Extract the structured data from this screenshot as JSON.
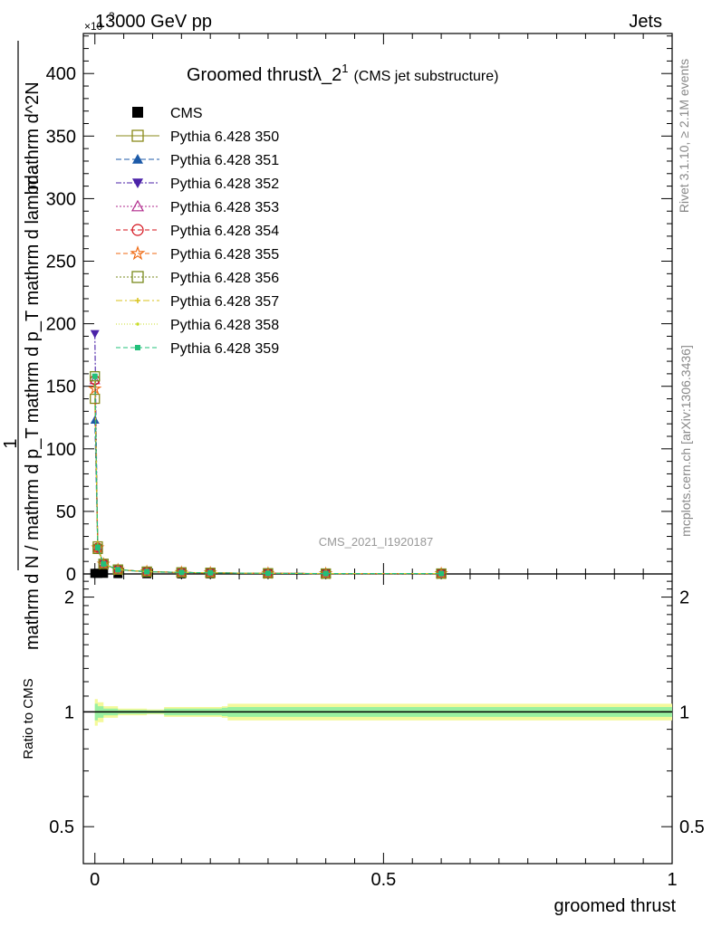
{
  "header": {
    "left": "13000 GeV pp",
    "right": "Jets",
    "exponent_prefix": "×10",
    "exponent": "3"
  },
  "side_labels": {
    "rivet": "Rivet 3.1.10, ≥ 2.1M events",
    "mcplots": "mcplots.cern.ch [arXiv:1306.3436]"
  },
  "chart_data": [
    {
      "type": "line",
      "panel": "main",
      "title": "Groomed thrustλ_2",
      "title_sup": "1",
      "subtitle": "(CMS jet substructure)",
      "watermark": "CMS_2021_I1920187",
      "ylabel_numerator_top": "1",
      "ylabel_numerator": "mathrm d N",
      "ylabel_fraction_bar_text": "mathrm d N / mathrm d p",
      "ylabel_lines": [
        "mathrm d N / mathrm d p_T mathrm d lambda",
        "mathrm d p_T mathrm d lambda"
      ],
      "ylabel_main": "1",
      "ylabel_top": "mathrm d^2N",
      "ylabel_bottom": "mathrm d N / mathrm d p_T mathrm d p_T mathrm d lambda",
      "xlim": [
        -0.02,
        1.0
      ],
      "ylim": [
        0,
        432
      ],
      "y_ticks": [
        0,
        50,
        100,
        150,
        200,
        250,
        300,
        350,
        400
      ],
      "x_ticks": [
        0,
        0.5,
        1
      ],
      "y_scale_factor": 1000,
      "legend_position": "top-left",
      "x": [
        0.0,
        0.005,
        0.015,
        0.04,
        0.09,
        0.15,
        0.2,
        0.3,
        0.4,
        0.6
      ],
      "series": [
        {
          "name": "CMS",
          "color": "#000000",
          "marker": "filled-square",
          "dash": "none",
          "values": [
            0.5,
            0.5,
            0.5,
            0.3,
            0.2,
            0.1,
            0.1,
            0.05,
            0.05,
            0.05
          ]
        },
        {
          "name": "Pythia 6.428 350",
          "color": "#8a8a1a",
          "marker": "open-square",
          "dash": "solid",
          "values": [
            140,
            22,
            8,
            3.5,
            1.8,
            1.2,
            0.9,
            0.5,
            0.3,
            0.3
          ]
        },
        {
          "name": "Pythia 6.428 351",
          "color": "#1c5aa8",
          "marker": "filled-triangle-up",
          "dash": "6,3",
          "values": [
            123,
            20,
            7.5,
            3.3,
            1.7,
            1.1,
            0.9,
            0.5,
            0.3,
            0.3
          ]
        },
        {
          "name": "Pythia 6.428 352",
          "color": "#4b22a8",
          "marker": "filled-triangle-down",
          "dash": "6,2,2,2",
          "values": [
            192,
            21,
            7.8,
            3.4,
            1.8,
            1.2,
            0.9,
            0.5,
            0.3,
            0.3
          ]
        },
        {
          "name": "Pythia 6.428 353",
          "color": "#b02a8c",
          "marker": "open-triangle-up",
          "dash": "2,2",
          "values": [
            155,
            21,
            7.9,
            3.4,
            1.8,
            1.2,
            0.9,
            0.5,
            0.3,
            0.3
          ]
        },
        {
          "name": "Pythia 6.428 354",
          "color": "#d4101a",
          "marker": "open-circle",
          "dash": "5,3",
          "values": [
            155,
            21,
            7.9,
            3.4,
            1.8,
            1.2,
            0.9,
            0.5,
            0.3,
            0.3
          ]
        },
        {
          "name": "Pythia 6.428 355",
          "color": "#ef6a13",
          "marker": "open-star",
          "dash": "5,3",
          "values": [
            148,
            21,
            7.9,
            3.4,
            1.8,
            1.2,
            0.9,
            0.5,
            0.3,
            0.3
          ]
        },
        {
          "name": "Pythia 6.428 356",
          "color": "#7a8a1c",
          "marker": "open-square",
          "dash": "2,2",
          "values": [
            158,
            20,
            8.1,
            3.5,
            1.8,
            1.2,
            0.9,
            0.5,
            0.3,
            0.3
          ]
        },
        {
          "name": "Pythia 6.428 357",
          "color": "#d8c21a",
          "marker": "small-cross",
          "dash": "7,3,2,3",
          "values": [
            157,
            21,
            8,
            3.4,
            1.8,
            1.2,
            0.9,
            0.5,
            0.3,
            0.3
          ]
        },
        {
          "name": "Pythia 6.428 358",
          "color": "#c8dc2a",
          "marker": "small-dot",
          "dash": "1,2",
          "values": [
            157,
            21,
            8,
            3.4,
            1.8,
            1.2,
            0.9,
            0.5,
            0.3,
            0.3
          ]
        },
        {
          "name": "Pythia 6.428 359",
          "color": "#22c07a",
          "marker": "filled-small-square",
          "dash": "5,3",
          "values": [
            158,
            21,
            8,
            3.4,
            1.8,
            1.2,
            0.9,
            0.5,
            0.3,
            0.3
          ]
        }
      ]
    },
    {
      "type": "line",
      "panel": "ratio",
      "ylabel": "Ratio to CMS",
      "xlabel": "groomed thrust",
      "y_scale": "log",
      "ylim": [
        0.4,
        2.3
      ],
      "y_ticks": [
        0.5,
        1,
        2
      ],
      "x_ticks": [
        0,
        0.5,
        1
      ],
      "xlim": [
        -0.02,
        1.0
      ],
      "reference": 1,
      "bands": {
        "x": [
          0.0,
          0.005,
          0.015,
          0.04,
          0.09,
          0.12,
          0.22,
          0.23,
          1.0
        ],
        "outer": [
          0.08,
          0.06,
          0.035,
          0.02,
          0.015,
          0.03,
          0.035,
          0.05,
          0.05
        ],
        "inner": [
          0.05,
          0.035,
          0.02,
          0.012,
          0.01,
          0.02,
          0.025,
          0.03,
          0.03
        ],
        "outer_color": "#f4f99a",
        "inner_color": "#99f0a0"
      }
    }
  ]
}
